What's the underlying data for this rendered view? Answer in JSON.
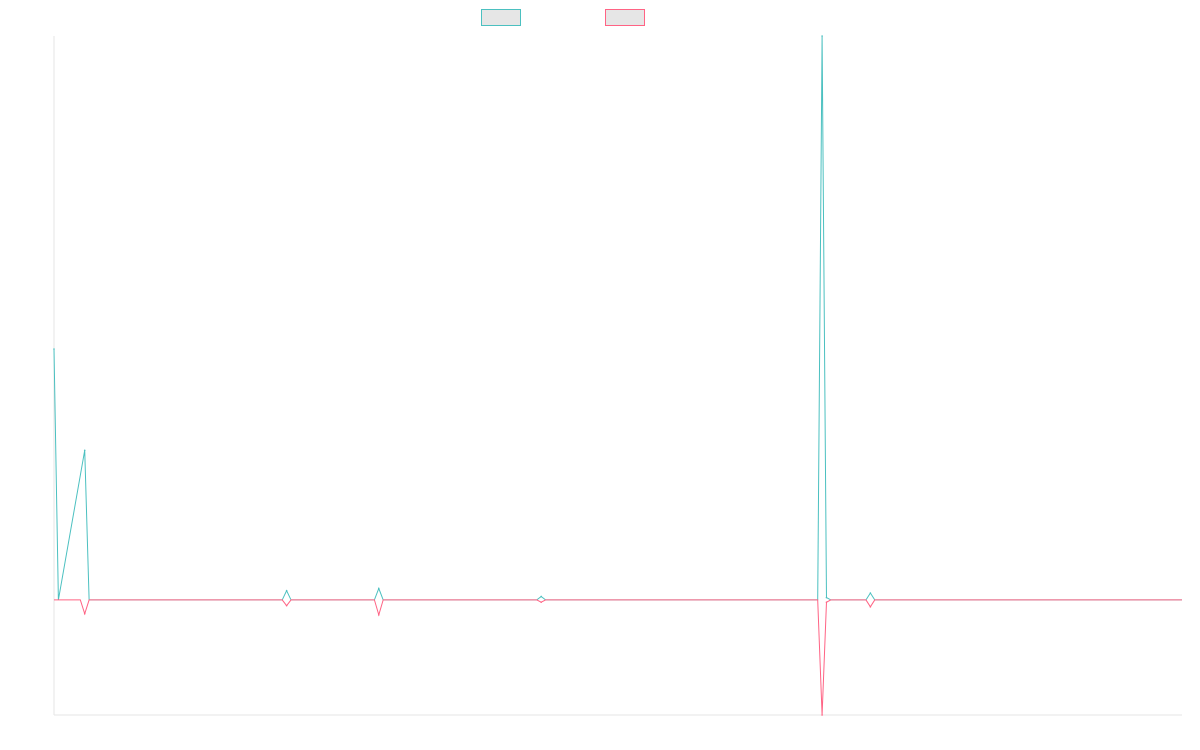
{
  "chart_data": {
    "type": "line",
    "title": "",
    "xlabel": "",
    "ylabel": "",
    "grid": false,
    "legend_placement": "top-center",
    "x_count": 258,
    "ylim": [
      -100,
      490
    ],
    "series": [
      {
        "legend_index": 0,
        "color": "#4bc0c0",
        "fill": "#e6e6e6",
        "points": [
          [
            0,
            218
          ],
          [
            1,
            0
          ],
          [
            7,
            130
          ],
          [
            8,
            0
          ],
          [
            52,
            0
          ],
          [
            53,
            8
          ],
          [
            54,
            0
          ],
          [
            73,
            0
          ],
          [
            74,
            10
          ],
          [
            75,
            0
          ],
          [
            110,
            0
          ],
          [
            111,
            3
          ],
          [
            112,
            0
          ],
          [
            174,
            0
          ],
          [
            175,
            490
          ],
          [
            176,
            2
          ],
          [
            177,
            0
          ],
          [
            185,
            0
          ],
          [
            186,
            6
          ],
          [
            187,
            0
          ],
          [
            257,
            0
          ]
        ]
      },
      {
        "legend_index": 1,
        "color": "#ff6384",
        "fill": "#e6e6e6",
        "points": [
          [
            0,
            0
          ],
          [
            6,
            0
          ],
          [
            7,
            -12
          ],
          [
            8,
            0
          ],
          [
            52,
            0
          ],
          [
            53,
            -5
          ],
          [
            54,
            0
          ],
          [
            73,
            0
          ],
          [
            74,
            -13
          ],
          [
            75,
            0
          ],
          [
            110,
            0
          ],
          [
            111,
            -2
          ],
          [
            112,
            0
          ],
          [
            174,
            0
          ],
          [
            175,
            -100
          ],
          [
            176,
            -2
          ],
          [
            177,
            0
          ],
          [
            185,
            0
          ],
          [
            186,
            -6
          ],
          [
            187,
            0
          ],
          [
            257,
            0
          ]
        ]
      }
    ]
  }
}
